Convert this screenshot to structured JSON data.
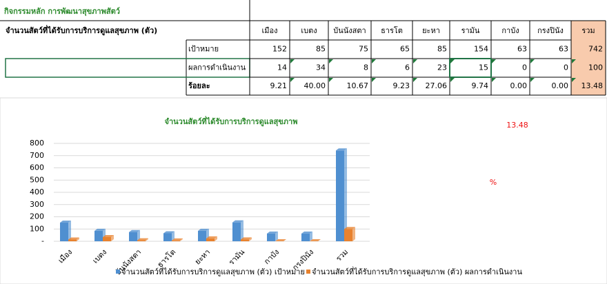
{
  "table": {
    "title": "กิจกรรมหลัก การพัฒนาสุขภาพสัตว์",
    "header_label": "จำนวนสัตว์ที่ได้รับการบริการดูแลสุขภาพ (ตัว)",
    "columns": [
      "เมือง",
      "เบตง",
      "บันนังสตา",
      "ธารโต",
      "ยะหา",
      "รามัน",
      "กาบัง",
      "กรงปินัง",
      "รวม"
    ],
    "rows": [
      {
        "label": "เป้าหมาย",
        "cells": [
          "152",
          "85",
          "75",
          "65",
          "85",
          "154",
          "63",
          "63",
          "742"
        ]
      },
      {
        "label": "ผลการดำเนินงาน",
        "cells": [
          "14",
          "34",
          "8",
          "6",
          "23",
          "15",
          "0",
          "0",
          "100"
        ]
      },
      {
        "label": "ร้อยละ",
        "cells": [
          "9.21",
          "40.00",
          "10.67",
          "9.23",
          "27.06",
          "9.74",
          "0.00",
          "0.00",
          "13.48"
        ]
      }
    ]
  },
  "chart_data": {
    "type": "bar",
    "title": "จำนวนสัตว์ที่ได้รับการบริการดูแลสุขภาพ",
    "categories": [
      "เมือง",
      "เบตง",
      "บันนังสตา",
      "ธารโต",
      "ยะหา",
      "รามัน",
      "กาบัง",
      "กรงปินัง",
      "รวม"
    ],
    "series": [
      {
        "name": "จำนวนสัตว์ที่ได้รับการบริการดูแลสุขภาพ (ตัว) เป้าหมาย",
        "color": "#4f8fd0",
        "values": [
          152,
          85,
          75,
          65,
          85,
          154,
          63,
          63,
          742
        ]
      },
      {
        "name": "จำนวนสัตว์ที่ได้รับการบริการดูแลสุขภาพ (ตัว) ผลการดำเนินงาน",
        "color": "#e8822e",
        "values": [
          14,
          34,
          8,
          6,
          23,
          15,
          0,
          0,
          100
        ]
      }
    ],
    "ylim": [
      0,
      800
    ],
    "yticks": [
      {
        "value": 0,
        "label": "-"
      },
      100,
      200,
      300,
      400,
      500,
      600,
      700,
      800
    ],
    "grid": true,
    "legend": "bottom",
    "annotations": [
      "13.48",
      "%"
    ]
  }
}
